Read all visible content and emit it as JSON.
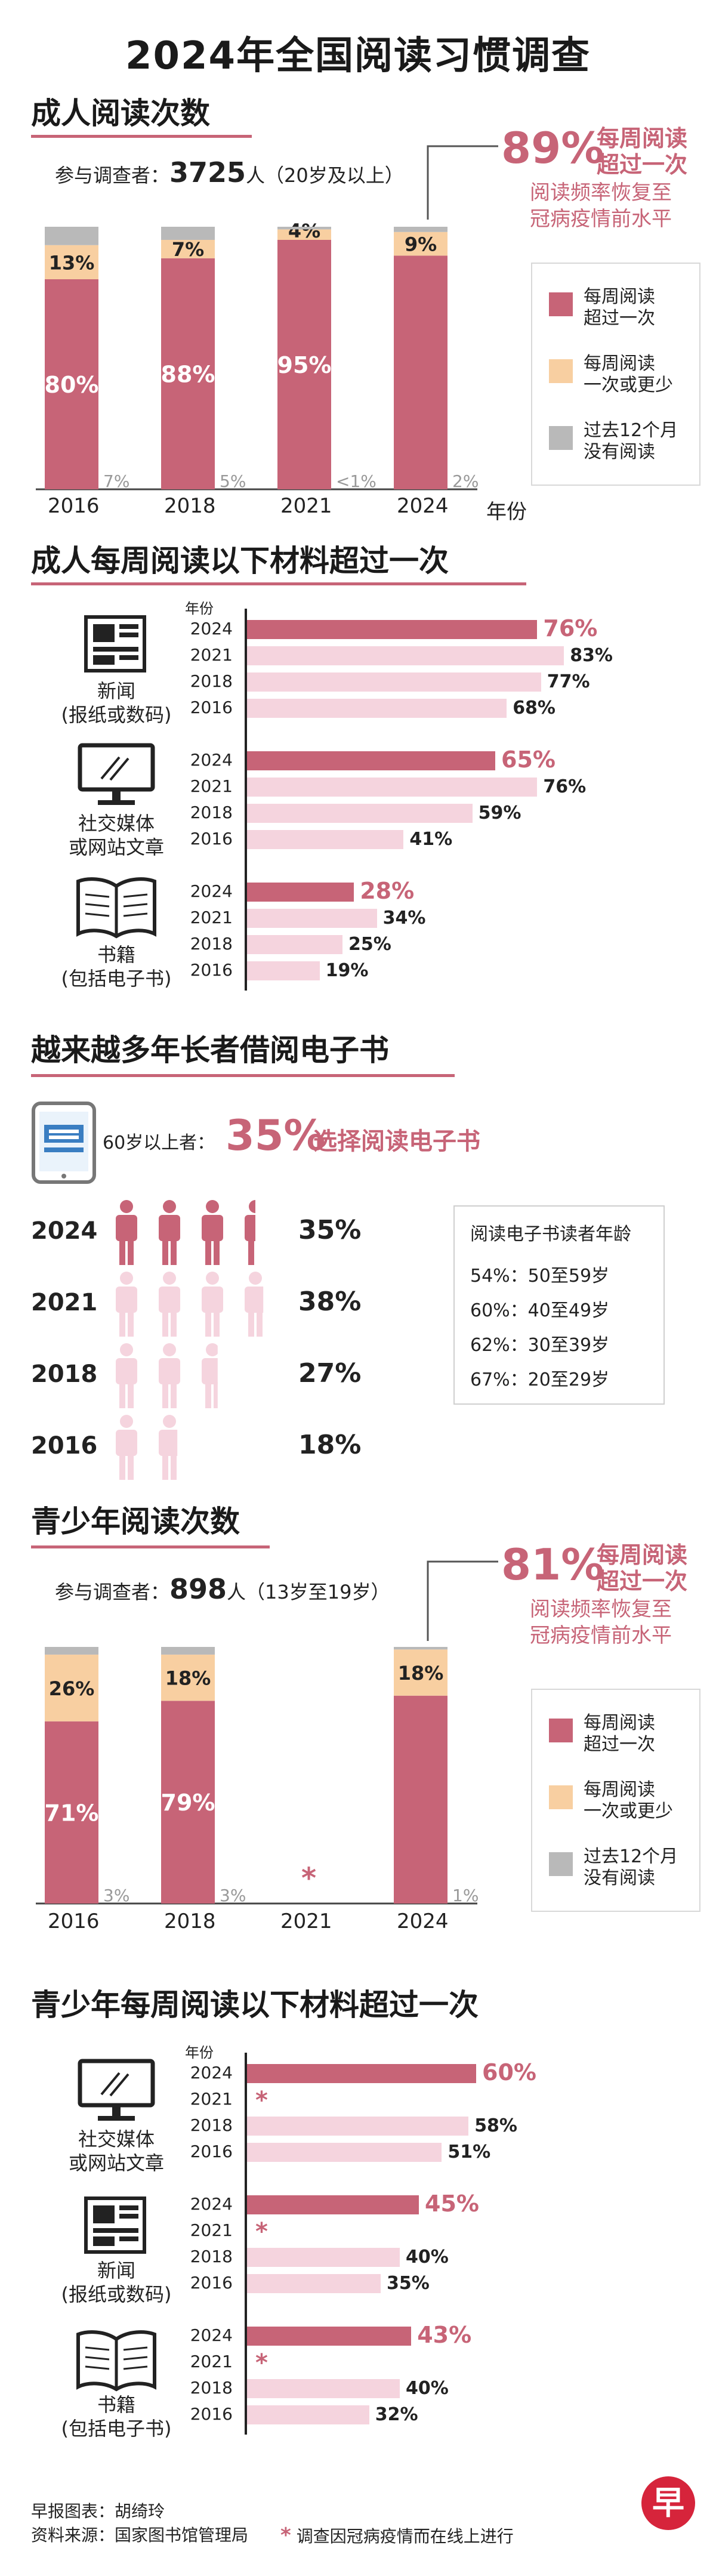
{
  "title": "2024年全国阅读习惯调查",
  "colors": {
    "weekly": "#c76477",
    "less": "#f8cfa1",
    "none": "#b9b9b9",
    "bar_hi": "#c76477",
    "bar_lo": "#f5d4de"
  },
  "icons": [
    "newspaper-icon",
    "monitor-icon",
    "book-icon",
    "tablet-icon",
    "person-icon",
    "asterisk-icon",
    "zaobao-logo"
  ],
  "s1": {
    "title": "成人阅读次数",
    "respondents_prefix": "参与调查者：",
    "respondents_count": "3725",
    "respondents_suffix": "人（20岁及以上）",
    "callout_pct": "89%",
    "callout_line1": "每周阅读",
    "callout_line2": "超过一次",
    "callout_sub1": "阅读频率恢复至",
    "callout_sub2": "冠病疫情前水平",
    "xlabel": "年份",
    "legend": [
      {
        "l1": "每周阅读",
        "l2": "超过一次"
      },
      {
        "l1": "每周阅读",
        "l2": "一次或更少"
      },
      {
        "l1": "过去12个月",
        "l2": "没有阅读"
      }
    ]
  },
  "s2": {
    "title": "成人每周阅读以下材料超过一次",
    "year_header": "年份",
    "cats": [
      {
        "l1": "新闻",
        "l2": "(报纸或数码)"
      },
      {
        "l1": "社交媒体",
        "l2": "或网站文章"
      },
      {
        "l1": "书籍",
        "l2": "(包括电子书)"
      }
    ]
  },
  "s3": {
    "title": "越来越多年长者借阅电子书",
    "prefix": "60岁以上者：",
    "pct": "35%",
    "suffix": "选择阅读电子书",
    "age_title": "阅读电子书读者年龄",
    "ages": [
      "54%：50至59岁",
      "60%：40至49岁",
      "62%：30至39岁",
      "67%：20至29岁"
    ]
  },
  "s4": {
    "title": "青少年阅读次数",
    "respondents_prefix": "参与调查者：",
    "respondents_count": "898",
    "respondents_suffix": "人（13岁至19岁）",
    "callout_pct": "81%",
    "callout_line1": "每周阅读",
    "callout_line2": "超过一次",
    "callout_sub1": "阅读频率恢复至",
    "callout_sub2": "冠病疫情前水平",
    "missing_mark": "*",
    "legend": [
      {
        "l1": "每周阅读",
        "l2": "超过一次"
      },
      {
        "l1": "每周阅读",
        "l2": "一次或更少"
      },
      {
        "l1": "过去12个月",
        "l2": "没有阅读"
      }
    ]
  },
  "s5": {
    "title": "青少年每周阅读以下材料超过一次",
    "year_header": "年份",
    "missing_mark": "*",
    "cats": [
      {
        "l1": "社交媒体",
        "l2": "或网站文章"
      },
      {
        "l1": "新闻",
        "l2": "(报纸或数码)"
      },
      {
        "l1": "书籍",
        "l2": "(包括电子书)"
      }
    ]
  },
  "footer": {
    "credit": "早报图表：胡绮玲",
    "source": "资料来源：国家图书馆管理局",
    "note_mark": "*",
    "note": "调查因冠病疫情而在线上进行",
    "logo_text": "早"
  },
  "chart_data": [
    {
      "type": "bar",
      "stacked": true,
      "categories": [
        "2016",
        "2018",
        "2021",
        "2024"
      ],
      "series": [
        {
          "name": "每周阅读超过一次",
          "values": [
            80,
            88,
            95,
            89
          ],
          "labels": [
            "80%",
            "88%",
            "95%",
            ""
          ]
        },
        {
          "name": "每周阅读一次或更少",
          "values": [
            13,
            7,
            4,
            9
          ],
          "labels": [
            "13%",
            "7%",
            "4%",
            "9%"
          ]
        },
        {
          "name": "过去12个月没有阅读",
          "values": [
            7,
            5,
            1,
            2
          ],
          "labels": [
            "7%",
            "5%",
            "<1%",
            "2%"
          ]
        }
      ],
      "xlabel": "年份",
      "ylim": [
        0,
        100
      ],
      "legend": "right"
    },
    {
      "type": "bar",
      "orientation": "horizontal",
      "groups": [
        {
          "name": "新闻(报纸或数码)",
          "years": [
            "2024",
            "2021",
            "2018",
            "2016"
          ],
          "values": [
            76,
            83,
            77,
            68
          ]
        },
        {
          "name": "社交媒体或网站文章",
          "years": [
            "2024",
            "2021",
            "2018",
            "2016"
          ],
          "values": [
            65,
            76,
            59,
            41
          ]
        },
        {
          "name": "书籍(包括电子书)",
          "years": [
            "2024",
            "2021",
            "2018",
            "2016"
          ],
          "values": [
            28,
            34,
            25,
            19
          ]
        }
      ],
      "xlim": [
        0,
        100
      ]
    },
    {
      "type": "bar",
      "orientation": "pictogram",
      "categories": [
        "2024",
        "2021",
        "2018",
        "2016"
      ],
      "values": [
        35,
        38,
        27,
        18
      ]
    },
    {
      "type": "bar",
      "stacked": true,
      "categories": [
        "2016",
        "2018",
        "2021",
        "2024"
      ],
      "series": [
        {
          "name": "每周阅读超过一次",
          "values": [
            71,
            79,
            null,
            81
          ],
          "labels": [
            "71%",
            "79%",
            "",
            ""
          ]
        },
        {
          "name": "每周阅读一次或更少",
          "values": [
            26,
            18,
            null,
            18
          ],
          "labels": [
            "26%",
            "18%",
            "",
            "18%"
          ]
        },
        {
          "name": "过去12个月没有阅读",
          "values": [
            3,
            3,
            null,
            1
          ],
          "labels": [
            "3%",
            "3%",
            "",
            "1%"
          ]
        }
      ],
      "ylim": [
        0,
        100
      ],
      "legend": "right"
    },
    {
      "type": "bar",
      "orientation": "horizontal",
      "groups": [
        {
          "name": "社交媒体或网站文章",
          "years": [
            "2024",
            "2021",
            "2018",
            "2016"
          ],
          "values": [
            60,
            null,
            58,
            51
          ]
        },
        {
          "name": "新闻(报纸或数码)",
          "years": [
            "2024",
            "2021",
            "2018",
            "2016"
          ],
          "values": [
            45,
            null,
            40,
            35
          ]
        },
        {
          "name": "书籍(包括电子书)",
          "years": [
            "2024",
            "2021",
            "2018",
            "2016"
          ],
          "values": [
            43,
            null,
            40,
            32
          ]
        }
      ],
      "xlim": [
        0,
        100
      ]
    }
  ]
}
